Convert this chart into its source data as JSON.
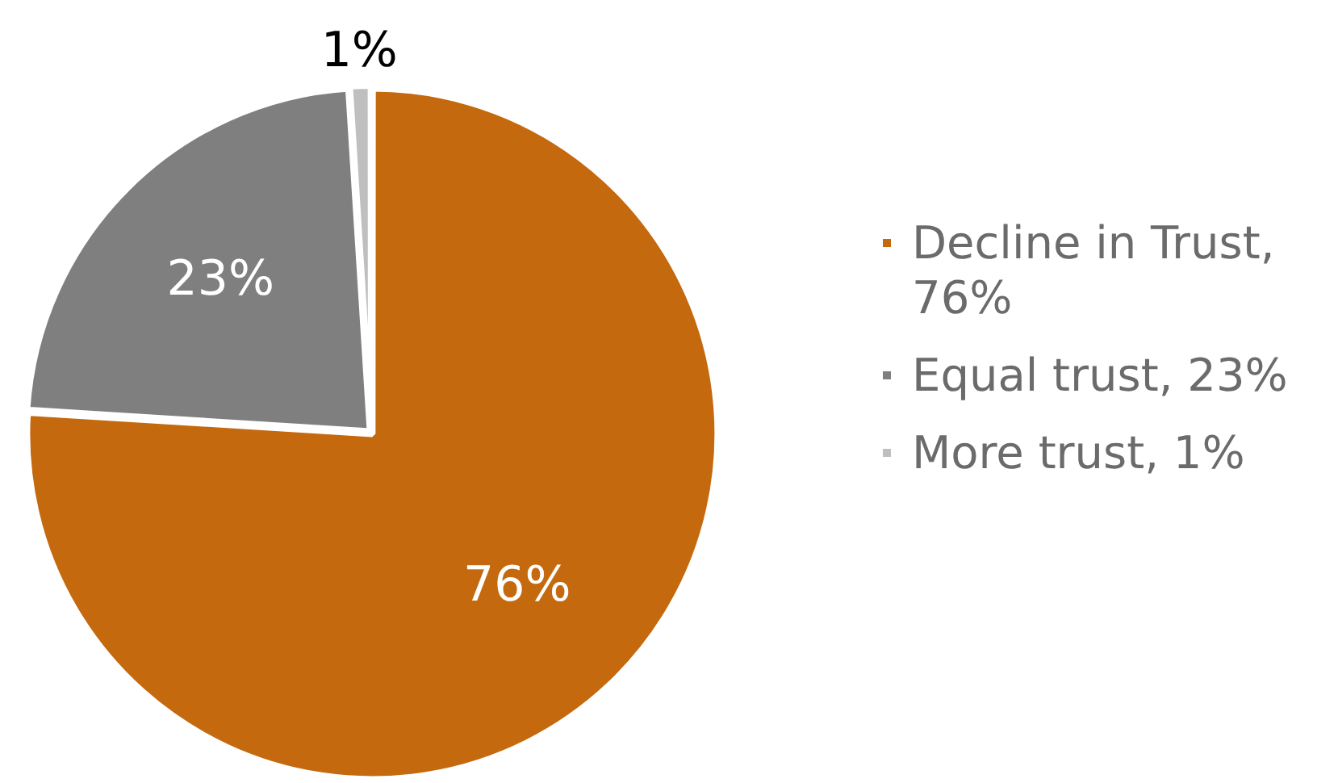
{
  "chart_data": {
    "type": "pie",
    "categories": [
      "Decline in Trust, 76%",
      "Equal trust, 23%",
      "More trust, 1%"
    ],
    "values": [
      76,
      23,
      1
    ],
    "colors": [
      "#c5690f",
      "#7f7f7f",
      "#bfbfbf"
    ],
    "value_labels": [
      "76%",
      "23%",
      "1%"
    ],
    "legend": "right"
  }
}
